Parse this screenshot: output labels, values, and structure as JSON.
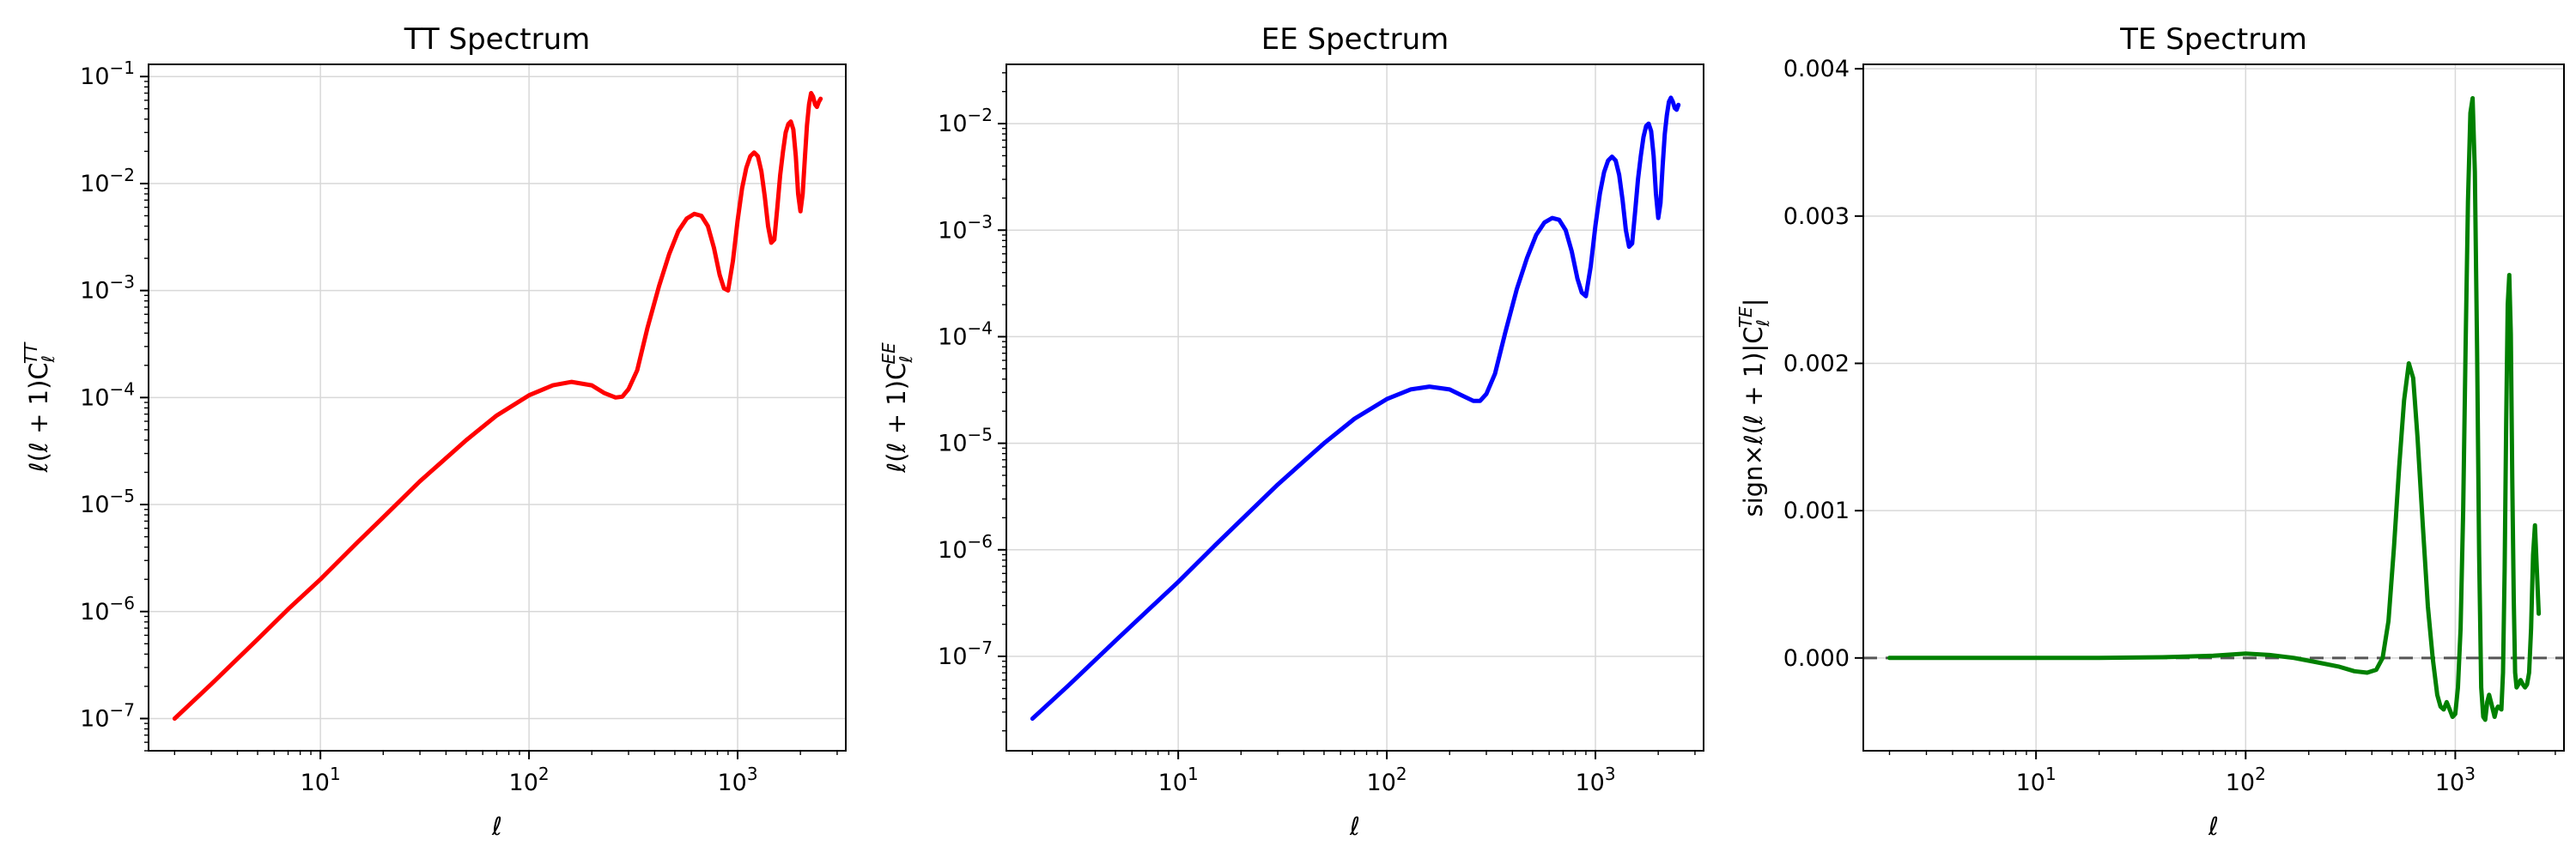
{
  "chart_data": [
    {
      "type": "line",
      "title": "TT Spectrum",
      "xlabel": "ℓ",
      "ylabel": "ℓ(ℓ + 1)C_ℓ^TT",
      "ylabel_parts": {
        "main": "ℓ(ℓ + 1)C",
        "sub": "ℓ",
        "sup": "TT"
      },
      "x_scale": "log",
      "y_scale": "log",
      "xlim": [
        1.5,
        3300
      ],
      "ylim": [
        5e-08,
        0.13
      ],
      "grid": true,
      "color": "#ff0000",
      "x_tick_labels": [
        {
          "v": 10,
          "base": "10",
          "exp": "1"
        },
        {
          "v": 100,
          "base": "10",
          "exp": "2"
        },
        {
          "v": 1000,
          "base": "10",
          "exp": "3"
        }
      ],
      "y_tick_labels": [
        {
          "v": 1e-07,
          "base": "10",
          "exp": "−7"
        },
        {
          "v": 1e-06,
          "base": "10",
          "exp": "−6"
        },
        {
          "v": 1e-05,
          "base": "10",
          "exp": "−5"
        },
        {
          "v": 0.0001,
          "base": "10",
          "exp": "−4"
        },
        {
          "v": 0.001,
          "base": "10",
          "exp": "−3"
        },
        {
          "v": 0.01,
          "base": "10",
          "exp": "−2"
        },
        {
          "v": 0.1,
          "base": "10",
          "exp": "−1"
        }
      ],
      "x": [
        2,
        3,
        5,
        7,
        10,
        15,
        20,
        30,
        50,
        70,
        100,
        130,
        160,
        200,
        230,
        260,
        280,
        300,
        330,
        370,
        420,
        470,
        520,
        570,
        620,
        670,
        720,
        770,
        820,
        860,
        900,
        950,
        1000,
        1050,
        1100,
        1150,
        1200,
        1250,
        1300,
        1350,
        1400,
        1450,
        1500,
        1550,
        1600,
        1650,
        1700,
        1750,
        1800,
        1850,
        1900,
        1950,
        2000,
        2050,
        2100,
        2150,
        2200,
        2250,
        2300,
        2350,
        2400,
        2450,
        2500
      ],
      "y": [
        1e-07,
        2.1e-07,
        5.5e-07,
        1.05e-06,
        2e-06,
        4.4e-06,
        7.6e-06,
        1.65e-05,
        4e-05,
        6.8e-05,
        0.000105,
        0.00013,
        0.00014,
        0.00013,
        0.00011,
        0.0001,
        0.000102,
        0.00012,
        0.00018,
        0.00045,
        0.0011,
        0.0022,
        0.0036,
        0.0047,
        0.0052,
        0.005,
        0.004,
        0.0025,
        0.0014,
        0.00105,
        0.001,
        0.0019,
        0.0045,
        0.009,
        0.014,
        0.018,
        0.0195,
        0.018,
        0.013,
        0.0075,
        0.004,
        0.0028,
        0.003,
        0.006,
        0.012,
        0.02,
        0.03,
        0.036,
        0.038,
        0.032,
        0.018,
        0.008,
        0.0055,
        0.008,
        0.017,
        0.035,
        0.055,
        0.07,
        0.065,
        0.055,
        0.052,
        0.058,
        0.062
      ]
    },
    {
      "type": "line",
      "title": "EE Spectrum",
      "xlabel": "ℓ",
      "ylabel": "ℓ(ℓ + 1)C_ℓ^EE",
      "ylabel_parts": {
        "main": "ℓ(ℓ + 1)C",
        "sub": "ℓ",
        "sup": "EE"
      },
      "x_scale": "log",
      "y_scale": "log",
      "xlim": [
        1.5,
        3300
      ],
      "ylim": [
        1.3e-08,
        0.036
      ],
      "grid": true,
      "color": "#0000ff",
      "x_tick_labels": [
        {
          "v": 10,
          "base": "10",
          "exp": "1"
        },
        {
          "v": 100,
          "base": "10",
          "exp": "2"
        },
        {
          "v": 1000,
          "base": "10",
          "exp": "3"
        }
      ],
      "y_tick_labels": [
        {
          "v": 1e-07,
          "base": "10",
          "exp": "−7"
        },
        {
          "v": 1e-06,
          "base": "10",
          "exp": "−6"
        },
        {
          "v": 1e-05,
          "base": "10",
          "exp": "−5"
        },
        {
          "v": 0.0001,
          "base": "10",
          "exp": "−4"
        },
        {
          "v": 0.001,
          "base": "10",
          "exp": "−3"
        },
        {
          "v": 0.01,
          "base": "10",
          "exp": "−2"
        }
      ],
      "x": [
        2,
        3,
        5,
        7,
        10,
        15,
        20,
        30,
        50,
        70,
        100,
        130,
        160,
        200,
        230,
        260,
        280,
        300,
        330,
        370,
        420,
        470,
        520,
        570,
        620,
        670,
        720,
        770,
        820,
        860,
        900,
        950,
        1000,
        1050,
        1100,
        1150,
        1200,
        1250,
        1300,
        1350,
        1400,
        1450,
        1500,
        1550,
        1600,
        1650,
        1700,
        1750,
        1800,
        1850,
        1900,
        1950,
        2000,
        2050,
        2100,
        2150,
        2200,
        2250,
        2300,
        2350,
        2400,
        2450,
        2500
      ],
      "y": [
        2.6e-08,
        5.4e-08,
        1.4e-07,
        2.6e-07,
        5e-07,
        1.1e-06,
        1.9e-06,
        4.1e-06,
        1e-05,
        1.7e-05,
        2.6e-05,
        3.2e-05,
        3.4e-05,
        3.2e-05,
        2.8e-05,
        2.5e-05,
        2.5e-05,
        2.9e-05,
        4.5e-05,
        0.00011,
        0.00028,
        0.00055,
        0.0009,
        0.00118,
        0.0013,
        0.00125,
        0.001,
        0.00063,
        0.00035,
        0.00026,
        0.00024,
        0.00046,
        0.0011,
        0.0022,
        0.0035,
        0.0045,
        0.0049,
        0.0045,
        0.0033,
        0.0019,
        0.001,
        0.0007,
        0.00075,
        0.0015,
        0.003,
        0.005,
        0.0075,
        0.0095,
        0.01,
        0.0085,
        0.005,
        0.0022,
        0.0013,
        0.0018,
        0.004,
        0.008,
        0.012,
        0.016,
        0.0175,
        0.016,
        0.014,
        0.0135,
        0.015
      ]
    },
    {
      "type": "line",
      "title": "TE Spectrum",
      "xlabel": "ℓ",
      "ylabel": "sign×ℓ(ℓ + 1)|C_ℓ^TE|",
      "ylabel_parts": {
        "main": "sign×ℓ(ℓ + 1)|C",
        "sub": "ℓ",
        "sup": "TE",
        "end": "|"
      },
      "x_scale": "log",
      "y_scale": "linear",
      "xlim": [
        1.5,
        3300
      ],
      "ylim": [
        -0.00063,
        0.00403
      ],
      "grid": true,
      "color": "#008000",
      "reference_line": {
        "y": 0,
        "style": "dashed",
        "color": "#555555"
      },
      "x_tick_labels": [
        {
          "v": 10,
          "base": "10",
          "exp": "1"
        },
        {
          "v": 100,
          "base": "10",
          "exp": "2"
        },
        {
          "v": 1000,
          "base": "10",
          "exp": "3"
        }
      ],
      "y_tick_labels": [
        {
          "v": 0,
          "text": "0.000"
        },
        {
          "v": 0.001,
          "text": "0.001"
        },
        {
          "v": 0.002,
          "text": "0.002"
        },
        {
          "v": 0.003,
          "text": "0.003"
        },
        {
          "v": 0.004,
          "text": "0.004"
        }
      ],
      "x": [
        2,
        5,
        10,
        20,
        40,
        70,
        100,
        130,
        170,
        220,
        280,
        330,
        380,
        420,
        450,
        480,
        510,
        540,
        570,
        600,
        630,
        660,
        700,
        740,
        780,
        820,
        850,
        880,
        910,
        940,
        970,
        1000,
        1030,
        1060,
        1090,
        1120,
        1150,
        1180,
        1210,
        1240,
        1270,
        1300,
        1330,
        1360,
        1390,
        1420,
        1450,
        1480,
        1510,
        1540,
        1570,
        1600,
        1630,
        1660,
        1690,
        1720,
        1750,
        1780,
        1810,
        1840,
        1870,
        1900,
        1930,
        1960,
        2000,
        2050,
        2100,
        2150,
        2200,
        2250,
        2300,
        2350,
        2400,
        2450,
        2500
      ],
      "y": [
        0.0,
        0.0,
        0.0,
        0.0,
        5e-06,
        1.5e-05,
        3e-05,
        2e-05,
        0.0,
        -3e-05,
        -6e-05,
        -9e-05,
        -0.0001,
        -8e-05,
        0.0,
        0.00025,
        0.00075,
        0.0013,
        0.00175,
        0.002,
        0.0019,
        0.0015,
        0.0009,
        0.00035,
        0.0,
        -0.00025,
        -0.00033,
        -0.00035,
        -0.0003,
        -0.00035,
        -0.0004,
        -0.00038,
        -0.0002,
        0.0002,
        0.001,
        0.0021,
        0.0031,
        0.0037,
        0.0038,
        0.0033,
        0.0021,
        0.0007,
        -0.0002,
        -0.0004,
        -0.00042,
        -0.0003,
        -0.00025,
        -0.0003,
        -0.00035,
        -0.0004,
        -0.00035,
        -0.00033,
        -0.00034,
        -0.00035,
        -0.0001,
        0.0006,
        0.0016,
        0.0024,
        0.0026,
        0.0022,
        0.0012,
        0.0004,
        -0.0001,
        -0.0002,
        -0.00018,
        -0.00015,
        -0.00018,
        -0.0002,
        -0.00018,
        -0.0001,
        0.0002,
        0.0007,
        0.0009,
        0.0006,
        0.0003
      ]
    }
  ]
}
